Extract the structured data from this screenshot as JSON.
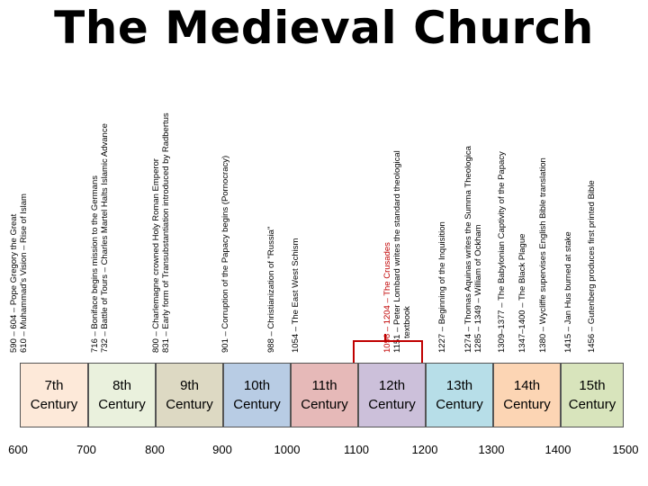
{
  "title": "The Medieval Church",
  "events": [
    {
      "line1": "590 – 604 – Pope Gregory the Great",
      "line2": "610 – Muhammad's Vision – Rise of Islam"
    },
    {
      "line1": "716 – Boniface begins mission to the Germans",
      "line2": "732 – Battle of Tours – Charles Martel Halts Islamic Advance"
    },
    {
      "line1": "800 – Charlemagne crowned Holy Roman Emperor",
      "line2": "831 – Early form of Transubstantiation introduced by Radbertus"
    },
    {
      "line1": "901 – Corruption of the Papacy begins (Pornocracy)"
    },
    {
      "line1": "988 – Christianization of \"Russia\""
    },
    {
      "line1": "1054 – The East West Schism"
    },
    {
      "line1": "1096 – 1204 – The Crusades",
      "line2": "1151 – Peter Lombard writes the standard theological",
      "line3": "textbook"
    },
    {
      "line1": "1227 – Beginning of the Inquisition"
    },
    {
      "line1": "1274 – Thomas Aquinas writes the Summa Theologica",
      "line2": "1285 – 1349 – William of Ockham"
    },
    {
      "line1": "1309–1377 – The Babylonian Captivity of the Papacy"
    },
    {
      "line1": "1347–1400 – The Black Plague"
    },
    {
      "line1": "1380 – Wycliffe supervises English Bible translation"
    },
    {
      "line1": "1415 – Jan Hus burned at stake"
    },
    {
      "line1": "1456 – Gutenberg produces first printed Bible"
    }
  ],
  "centuries": [
    {
      "ord": "7th",
      "word": "Century",
      "color": "#fde9d9"
    },
    {
      "ord": "8th",
      "word": "Century",
      "color": "#eaf1dd"
    },
    {
      "ord": "9th",
      "word": "Century",
      "color": "#ddd9c3"
    },
    {
      "ord": "10th",
      "word": "Century",
      "color": "#b8cce4"
    },
    {
      "ord": "11th",
      "word": "Century",
      "color": "#e6b9b8"
    },
    {
      "ord": "12th",
      "word": "Century",
      "color": "#ccc0da"
    },
    {
      "ord": "13th",
      "word": "Century",
      "color": "#b7dee8"
    },
    {
      "ord": "14th",
      "word": "Century",
      "color": "#fcd5b4"
    },
    {
      "ord": "15th",
      "word": "Century",
      "color": "#d8e4bc"
    }
  ],
  "axis_ticks": [
    "600",
    "700",
    "800",
    "900",
    "1000",
    "1100",
    "1200",
    "1300",
    "1400",
    "1500"
  ],
  "accent_color": "#c00000"
}
